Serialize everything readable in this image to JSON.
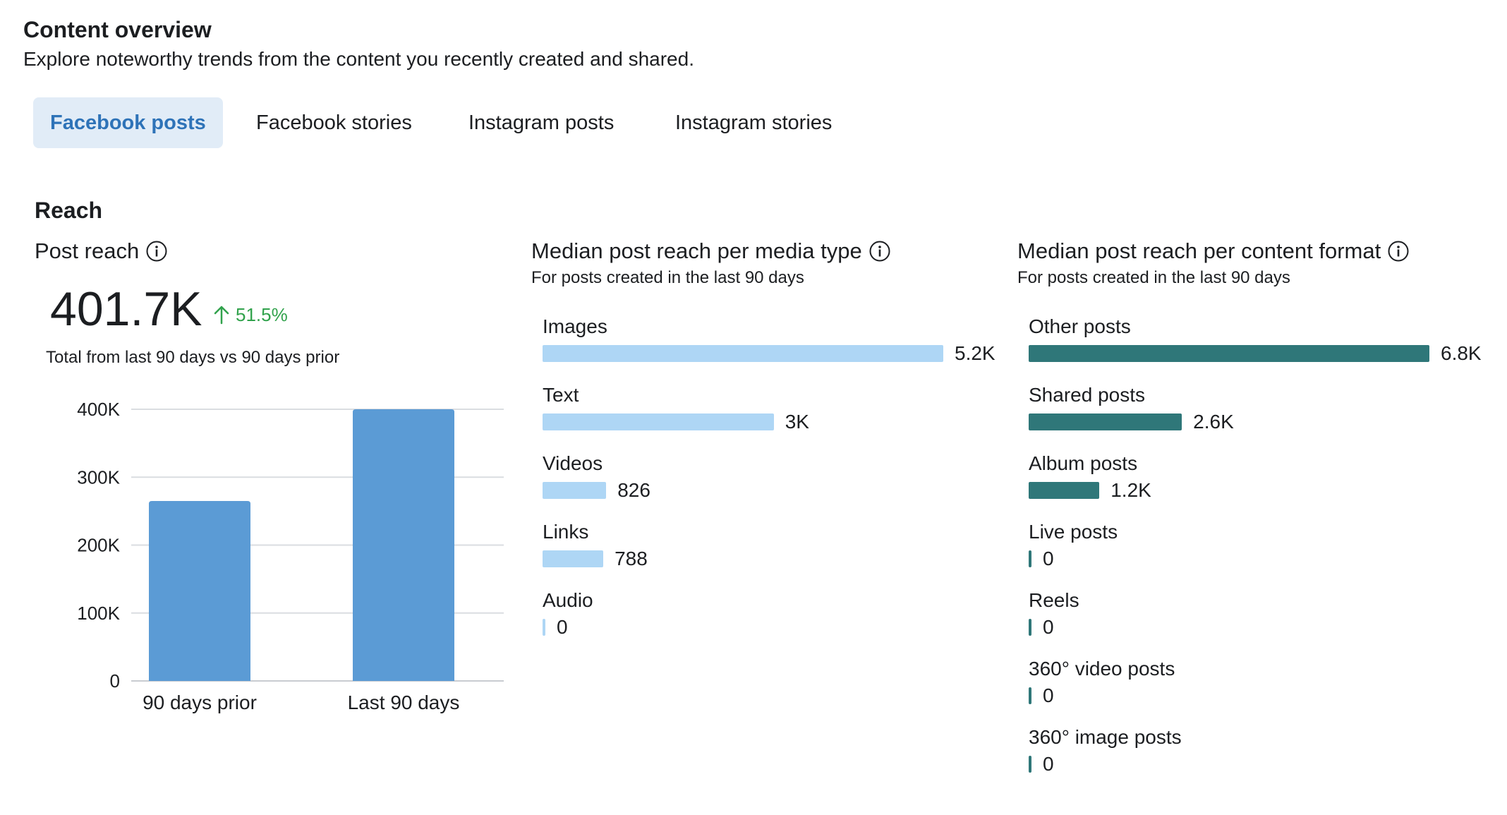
{
  "header": {
    "title": "Content overview",
    "subtitle": "Explore noteworthy trends from the content you recently created and shared."
  },
  "tabs": [
    {
      "label": "Facebook posts",
      "active": true
    },
    {
      "label": "Facebook stories",
      "active": false
    },
    {
      "label": "Instagram posts",
      "active": false
    },
    {
      "label": "Instagram stories",
      "active": false
    }
  ],
  "section": {
    "title": "Reach"
  },
  "post_reach": {
    "title": "Post reach",
    "value": "401.7K",
    "delta": "51.5%",
    "note": "Total from last 90 days vs 90 days prior"
  },
  "media_type": {
    "title": "Median post reach per media type",
    "subtitle": "For posts created in the last 90 days"
  },
  "content_format": {
    "title": "Median post reach per content format",
    "subtitle": "For posts created in the last 90 days"
  },
  "colors": {
    "reach_bar": "#5b9bd5",
    "media_bar": "#aed6f5",
    "format_bar": "#2f7779",
    "tab_active_bg": "#e1ecf7",
    "tab_active_text": "#2e73b8",
    "delta_green": "#31a24c"
  },
  "chart_data": [
    {
      "type": "bar",
      "title": "Post reach",
      "categories": [
        "90 days prior",
        "Last 90 days"
      ],
      "values": [
        265000,
        401700
      ],
      "ylim": [
        0,
        400000
      ],
      "yticks": [
        0,
        100000,
        200000,
        300000,
        400000
      ],
      "ytick_labels": [
        "0",
        "100K",
        "200K",
        "300K",
        "400K"
      ],
      "xlabel": "",
      "ylabel": ""
    },
    {
      "type": "bar",
      "orientation": "horizontal",
      "title": "Median post reach per media type",
      "categories": [
        "Images",
        "Text",
        "Videos",
        "Links",
        "Audio"
      ],
      "values": [
        5200,
        3000,
        826,
        788,
        0
      ],
      "value_labels": [
        "5.2K",
        "3K",
        "826",
        "788",
        "0"
      ]
    },
    {
      "type": "bar",
      "orientation": "horizontal",
      "title": "Median post reach per content format",
      "categories": [
        "Other posts",
        "Shared posts",
        "Album posts",
        "Live posts",
        "Reels",
        "360° video posts",
        "360° image posts"
      ],
      "values": [
        6800,
        2600,
        1200,
        0,
        0,
        0,
        0
      ],
      "value_labels": [
        "6.8K",
        "2.6K",
        "1.2K",
        "0",
        "0",
        "0",
        "0"
      ]
    }
  ]
}
